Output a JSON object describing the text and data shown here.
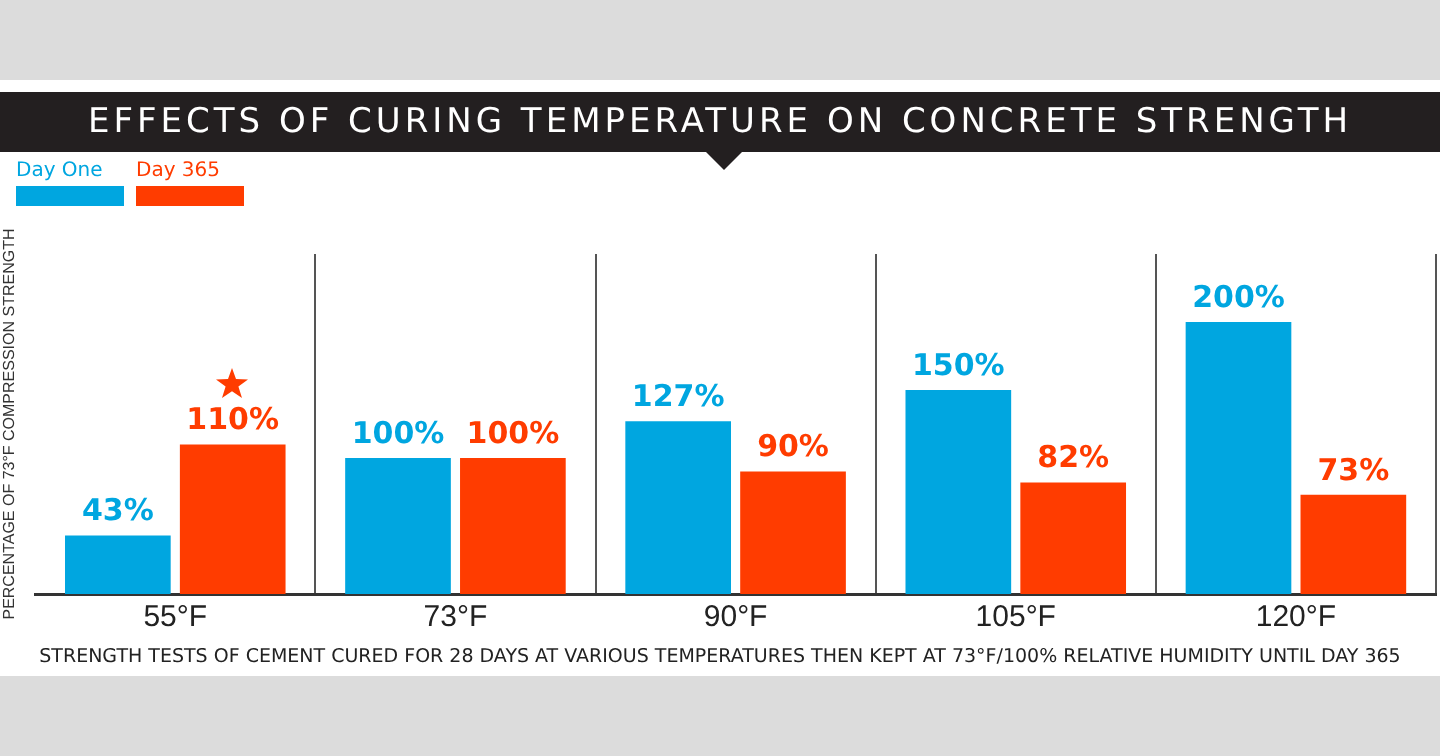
{
  "chart_data": {
    "type": "bar",
    "title": "EFFECTS OF CURING TEMPERATURE ON CONCRETE STRENGTH",
    "ylabel": "PERCENTAGE OF 73°F COMPRESSION STRENGTH",
    "categories": [
      "55°F",
      "73°F",
      "90°F",
      "105°F",
      "120°F"
    ],
    "series": [
      {
        "name": "Day One",
        "color": "#00a6e0",
        "values": [
          43,
          100,
          127,
          150,
          200
        ],
        "value_labels": [
          "43%",
          "100%",
          "127%",
          "150%",
          "200%"
        ]
      },
      {
        "name": "Day 365",
        "color": "#ff3c00",
        "values": [
          110,
          100,
          90,
          82,
          73
        ],
        "value_labels": [
          "110%",
          "100%",
          "90%",
          "82%",
          "73%"
        ]
      }
    ],
    "annotations": [
      "STRENGTH TESTS OF CEMENT CURED FOR 28 DAYS AT VARIOUS TEMPERATURES THEN KEPT AT 73°F/100% RELATIVE HUMIDITY UNTIL DAY 365"
    ],
    "legend": "top left",
    "grid": "x",
    "tick_labels": "x"
  }
}
